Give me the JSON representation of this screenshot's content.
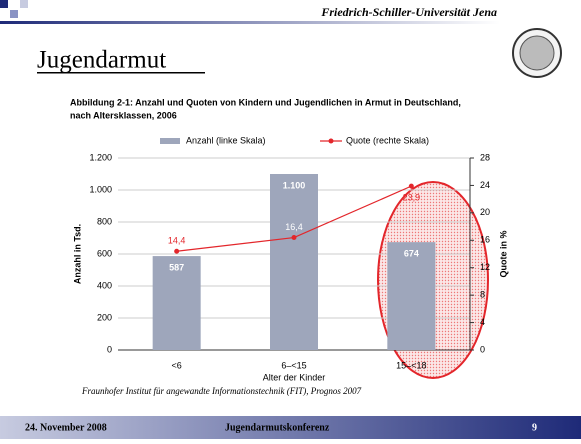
{
  "slide": {
    "university": "Friedrich-Schiller-Universität Jena",
    "heading": "Jugendarmut",
    "date": "24. November 2008",
    "event": "Jugendarmutskonferenz",
    "page": "9",
    "source": "Fraunhofer Institut für angewandte Informationstechnik (FIT), Prognos 2007"
  },
  "chart_data": {
    "type": "bar",
    "title": "Abbildung 2-1: Anzahl und Quoten von Kindern und Jugendlichen in Armut in Deutschland, nach Altersklassen, 2006",
    "categories": [
      "<6",
      "6–<15",
      "15–<18"
    ],
    "x_label": "Alter der Kinder",
    "y_label": "Anzahl in Tsd.",
    "y2_label": "Quote in %",
    "series": [
      {
        "name": "Anzahl (linke Skala)",
        "color": "#9ea6bb",
        "values": [
          587,
          1100,
          674
        ],
        "value_labels": [
          "587",
          "1.100",
          "674"
        ]
      },
      {
        "name": "Quote (rechte Skala)",
        "type": "line",
        "axis": "y2",
        "color": "#e3262b",
        "values": [
          14.4,
          16.4,
          23.9
        ],
        "value_labels": [
          "14,4",
          "16,4",
          "23,9"
        ]
      }
    ],
    "ylim": [
      0,
      1200
    ],
    "yticks": [
      0,
      200,
      400,
      600,
      800,
      {
        "value": 1000,
        "label": "1.000"
      },
      {
        "value": 1200,
        "label": "1.200"
      }
    ],
    "y2lim": [
      0,
      28
    ],
    "y2ticks": [
      0,
      4,
      8,
      12,
      16,
      20,
      24,
      28
    ],
    "grid": true,
    "legend": "top"
  }
}
